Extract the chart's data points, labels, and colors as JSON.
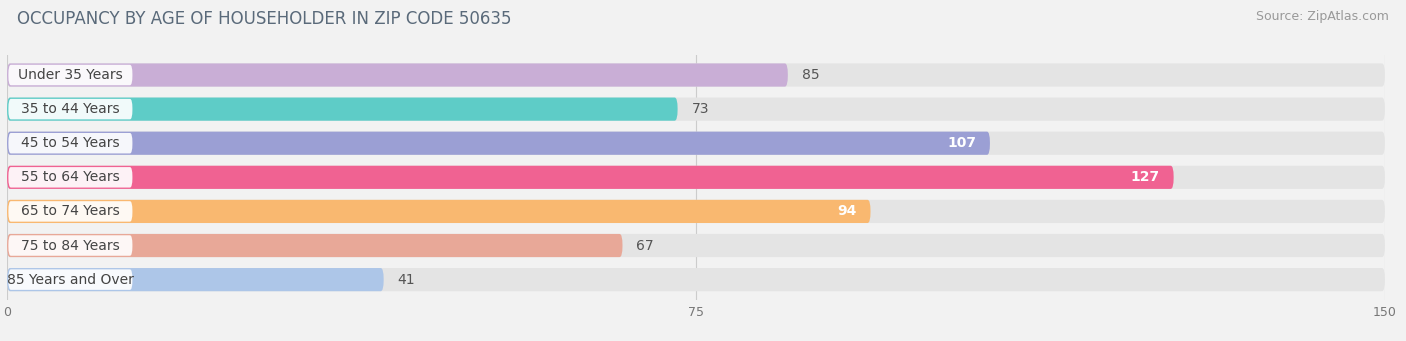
{
  "title": "OCCUPANCY BY AGE OF HOUSEHOLDER IN ZIP CODE 50635",
  "source": "Source: ZipAtlas.com",
  "categories": [
    "Under 35 Years",
    "35 to 44 Years",
    "45 to 54 Years",
    "55 to 64 Years",
    "65 to 74 Years",
    "75 to 84 Years",
    "85 Years and Over"
  ],
  "values": [
    85,
    73,
    107,
    127,
    94,
    67,
    41
  ],
  "bar_colors": [
    "#c9aed6",
    "#5eccc7",
    "#9b9fd4",
    "#f06292",
    "#f9b870",
    "#e8a898",
    "#adc6e8"
  ],
  "value_inside": [
    false,
    false,
    true,
    true,
    true,
    false,
    false
  ],
  "xlim": [
    0,
    150
  ],
  "xticks": [
    0,
    75,
    150
  ],
  "bg_color": "#f2f2f2",
  "bar_bg_color": "#e4e4e4",
  "title_fontsize": 12,
  "source_fontsize": 9,
  "cat_fontsize": 10,
  "val_fontsize": 10
}
